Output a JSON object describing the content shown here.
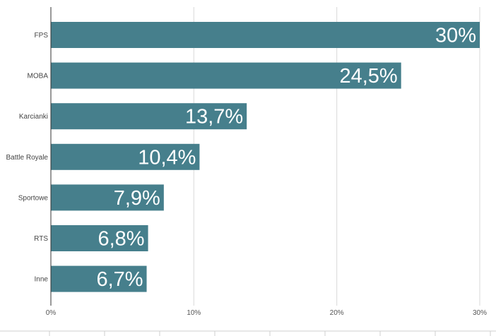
{
  "chart_data": {
    "type": "bar",
    "orientation": "horizontal",
    "categories": [
      "FPS",
      "MOBA",
      "Karcianki",
      "Battle Royale",
      "Sportowe",
      "RTS",
      "Inne"
    ],
    "values": [
      30,
      24.5,
      13.7,
      10.4,
      7.9,
      6.8,
      6.7
    ],
    "data_labels": [
      "30%",
      "24,5%",
      "13,7%",
      "10,4%",
      "7,9%",
      "6,8%",
      "6,7%"
    ],
    "x_ticks": [
      0,
      10,
      20,
      30
    ],
    "x_tick_labels": [
      "0%",
      "10%",
      "20%",
      "30%"
    ],
    "xlim": [
      0,
      30
    ],
    "grid": true,
    "legend": "none",
    "bar_color": "#467f8c",
    "label_color": "#ffffff"
  }
}
